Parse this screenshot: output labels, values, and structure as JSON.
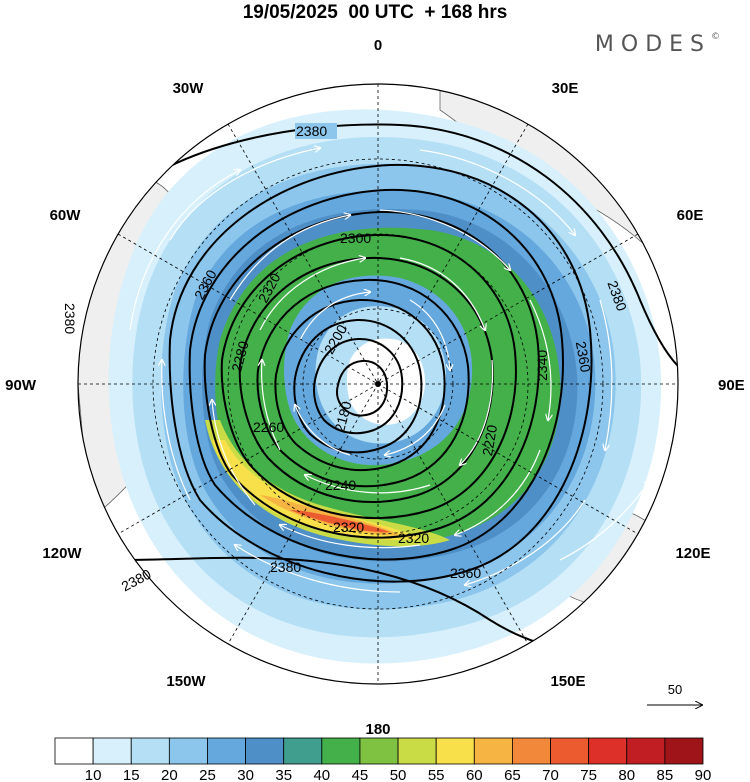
{
  "title": "19/05/2025  00 UTC  + 168 hrs",
  "brand": "MODES",
  "brand_mark": "©",
  "longitude_labels": [
    "0",
    "30E",
    "60E",
    "90E",
    "120E",
    "150E",
    "180",
    "150W",
    "120W",
    "90W",
    "60W",
    "30W"
  ],
  "contour_labels": [
    "2380",
    "2360",
    "2340",
    "2320",
    "2300",
    "2280",
    "2260",
    "2240",
    "2220",
    "2200",
    "2180"
  ],
  "wind_reference": "50",
  "colorbar": {
    "labels": [
      "10",
      "15",
      "20",
      "25",
      "30",
      "35",
      "40",
      "45",
      "50",
      "55",
      "60",
      "65",
      "70",
      "75",
      "80",
      "85",
      "90"
    ],
    "colors": [
      "#ffffff",
      "#d7f0fb",
      "#b4dff5",
      "#8cc6ec",
      "#65a8dd",
      "#4e8fc7",
      "#3f9e8e",
      "#43b04a",
      "#7fc242",
      "#c9dc46",
      "#f8e04a",
      "#f6b443",
      "#f2883a",
      "#ec5a30",
      "#dc3028",
      "#c01e22",
      "#9e1418"
    ]
  }
}
